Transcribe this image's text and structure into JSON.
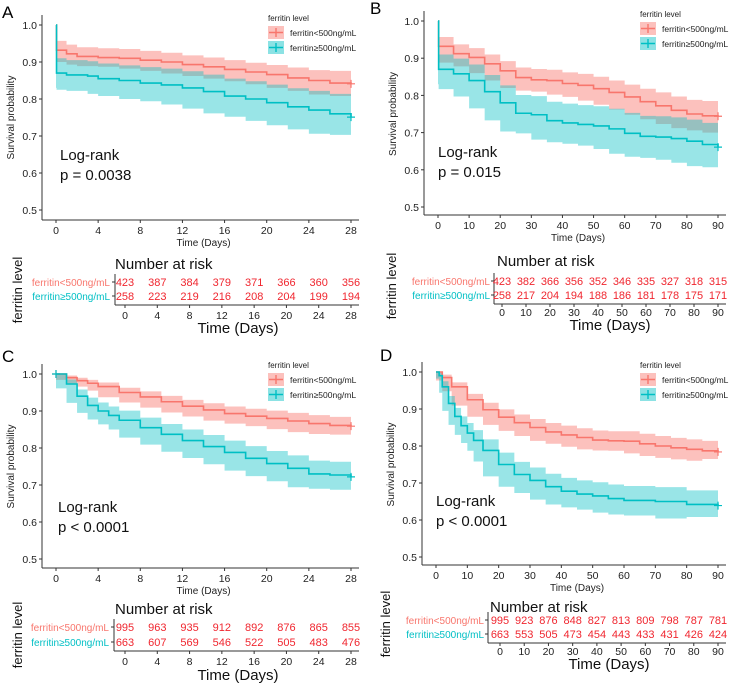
{
  "chart_data": [
    {
      "panel": "A",
      "type": "line",
      "subtype": "kaplan-meier",
      "xlabel": "Time (Days)",
      "ylabel": "Survival probability",
      "xlim": [
        0,
        28
      ],
      "ylim": [
        0.5,
        1.0
      ],
      "xticks": [
        0,
        4,
        8,
        12,
        16,
        20,
        24,
        28
      ],
      "yticks": [
        0.5,
        0.6,
        0.7,
        0.8,
        0.9,
        1.0
      ],
      "ytick_labels": [
        "0.5",
        "0.6",
        "0.7",
        "0.8",
        "0.9",
        "1.0"
      ],
      "legend_title": "ferritin level",
      "legend_position": "top-right",
      "annotation": [
        "Log-rank",
        "p = 0.0038"
      ],
      "series": [
        {
          "name": "ferritin<500ng/mL",
          "color": "#f8766d",
          "x": [
            0,
            0.05,
            1,
            2,
            4,
            6,
            8,
            10,
            12,
            14,
            16,
            18,
            20,
            22,
            24,
            26,
            28
          ],
          "y": [
            1.0,
            0.932,
            0.922,
            0.915,
            0.912,
            0.91,
            0.905,
            0.9,
            0.893,
            0.887,
            0.88,
            0.873,
            0.866,
            0.857,
            0.85,
            0.843,
            0.841
          ],
          "lower": [
            1.0,
            0.908,
            0.9,
            0.893,
            0.889,
            0.887,
            0.882,
            0.876,
            0.869,
            0.862,
            0.855,
            0.848,
            0.84,
            0.83,
            0.822,
            0.812,
            0.808
          ],
          "upper": [
            1.0,
            0.957,
            0.947,
            0.94,
            0.937,
            0.935,
            0.93,
            0.925,
            0.918,
            0.912,
            0.905,
            0.898,
            0.892,
            0.885,
            0.878,
            0.876,
            0.876
          ]
        },
        {
          "name": "ferritin≥500ng/mL",
          "color": "#00bfc4",
          "x": [
            0,
            0.05,
            1,
            3,
            4,
            6,
            8,
            10,
            12,
            14,
            16,
            18,
            20,
            22,
            24,
            26,
            28
          ],
          "y": [
            1.0,
            0.87,
            0.865,
            0.862,
            0.855,
            0.85,
            0.843,
            0.838,
            0.83,
            0.82,
            0.808,
            0.8,
            0.79,
            0.779,
            0.77,
            0.76,
            0.751
          ],
          "lower": [
            1.0,
            0.83,
            0.825,
            0.822,
            0.814,
            0.808,
            0.8,
            0.794,
            0.785,
            0.774,
            0.761,
            0.752,
            0.741,
            0.729,
            0.718,
            0.706,
            0.703
          ],
          "upper": [
            1.0,
            0.91,
            0.905,
            0.902,
            0.896,
            0.891,
            0.886,
            0.882,
            0.875,
            0.866,
            0.855,
            0.848,
            0.839,
            0.829,
            0.822,
            0.814,
            0.806
          ]
        }
      ],
      "risk_table": {
        "title": "Number at risk",
        "strata_title": "ferritin level",
        "xlabel": "Time (Days)",
        "times": [
          0,
          4,
          8,
          12,
          16,
          20,
          24,
          28
        ],
        "rows": [
          {
            "label": "ferritin<500ng/mL",
            "color": "#f8766d",
            "values": [
              423,
              387,
              384,
              379,
              371,
              366,
              360,
              356
            ]
          },
          {
            "label": "ferritin≥500ng/mL",
            "color": "#00bfc4",
            "values": [
              258,
              223,
              219,
              216,
              208,
              204,
              199,
              194
            ]
          }
        ]
      }
    },
    {
      "panel": "B",
      "type": "line",
      "subtype": "kaplan-meier",
      "xlabel": "Time (Days)",
      "ylabel": "Survival probability",
      "xlim": [
        0,
        90
      ],
      "ylim": [
        0.5,
        1.0
      ],
      "xticks": [
        0,
        10,
        20,
        30,
        40,
        50,
        60,
        70,
        80,
        90
      ],
      "yticks": [
        0.5,
        0.6,
        0.7,
        0.8,
        0.9,
        1.0
      ],
      "ytick_labels": [
        "0.5",
        "0.6",
        "0.7",
        "0.8",
        "0.9",
        "1.0"
      ],
      "legend_title": "ferritin level",
      "legend_position": "top-right",
      "annotation": [
        "Log-rank",
        "p = 0.015"
      ],
      "series": [
        {
          "name": "ferritin<500ng/mL",
          "color": "#f8766d",
          "x": [
            0,
            0.2,
            5,
            10,
            15,
            20,
            25,
            30,
            35,
            40,
            45,
            50,
            55,
            60,
            65,
            70,
            75,
            80,
            85,
            90
          ],
          "y": [
            1.0,
            0.932,
            0.912,
            0.902,
            0.885,
            0.866,
            0.848,
            0.842,
            0.84,
            0.832,
            0.827,
            0.818,
            0.808,
            0.796,
            0.783,
            0.772,
            0.76,
            0.75,
            0.745,
            0.744
          ],
          "lower": [
            1.0,
            0.908,
            0.888,
            0.878,
            0.86,
            0.84,
            0.82,
            0.813,
            0.81,
            0.802,
            0.796,
            0.786,
            0.775,
            0.762,
            0.748,
            0.736,
            0.723,
            0.712,
            0.706,
            0.7
          ],
          "upper": [
            1.0,
            0.957,
            0.937,
            0.927,
            0.91,
            0.892,
            0.875,
            0.871,
            0.869,
            0.862,
            0.858,
            0.85,
            0.84,
            0.829,
            0.818,
            0.808,
            0.797,
            0.788,
            0.785,
            0.786
          ]
        },
        {
          "name": "ferritin≥500ng/mL",
          "color": "#00bfc4",
          "x": [
            0,
            0.2,
            5,
            10,
            15,
            20,
            25,
            30,
            35,
            40,
            45,
            50,
            55,
            60,
            65,
            70,
            75,
            80,
            85,
            90
          ],
          "y": [
            1.0,
            0.87,
            0.858,
            0.84,
            0.81,
            0.78,
            0.752,
            0.748,
            0.732,
            0.726,
            0.722,
            0.718,
            0.71,
            0.698,
            0.69,
            0.688,
            0.684,
            0.677,
            0.668,
            0.661
          ],
          "lower": [
            1.0,
            0.83,
            0.817,
            0.797,
            0.765,
            0.733,
            0.703,
            0.698,
            0.681,
            0.674,
            0.67,
            0.665,
            0.656,
            0.643,
            0.635,
            0.632,
            0.627,
            0.619,
            0.61,
            0.607
          ],
          "upper": [
            1.0,
            0.91,
            0.899,
            0.883,
            0.855,
            0.827,
            0.801,
            0.798,
            0.783,
            0.778,
            0.774,
            0.771,
            0.764,
            0.753,
            0.745,
            0.744,
            0.741,
            0.735,
            0.726,
            0.707
          ]
        }
      ],
      "risk_table": {
        "title": "Number at risk",
        "strata_title": "ferritin level",
        "xlabel": "Time (Days)",
        "times": [
          0,
          10,
          20,
          30,
          40,
          50,
          60,
          70,
          80,
          90
        ],
        "rows": [
          {
            "label": "ferritin<500ng/mL",
            "color": "#f8766d",
            "values": [
              423,
              382,
              366,
              356,
              352,
              346,
              335,
              327,
              318,
              315
            ]
          },
          {
            "label": "ferritin≥500ng/mL",
            "color": "#00bfc4",
            "values": [
              258,
              217,
              204,
              194,
              188,
              186,
              181,
              178,
              175,
              171
            ]
          }
        ]
      }
    },
    {
      "panel": "C",
      "type": "line",
      "subtype": "kaplan-meier",
      "xlabel": "Time (Days)",
      "ylabel": "Survival probability",
      "xlim": [
        0,
        28
      ],
      "ylim": [
        0.5,
        1.0
      ],
      "xticks": [
        0,
        4,
        8,
        12,
        16,
        20,
        24,
        28
      ],
      "yticks": [
        0.5,
        0.6,
        0.7,
        0.8,
        0.9,
        1.0
      ],
      "ytick_labels": [
        "0.5",
        "0.6",
        "0.7",
        "0.8",
        "0.9",
        "1.0"
      ],
      "legend_title": "ferritin level",
      "legend_position": "top-right",
      "annotation": [
        "Log-rank",
        "p < 0.0001"
      ],
      "series": [
        {
          "name": "ferritin<500ng/mL",
          "color": "#f8766d",
          "x": [
            0,
            1,
            2,
            3,
            4,
            6,
            8,
            10,
            12,
            14,
            16,
            18,
            20,
            22,
            24,
            26,
            28
          ],
          "y": [
            1.0,
            0.99,
            0.982,
            0.975,
            0.966,
            0.95,
            0.938,
            0.925,
            0.913,
            0.903,
            0.893,
            0.886,
            0.88,
            0.873,
            0.866,
            0.861,
            0.859
          ],
          "lower": [
            1.0,
            0.984,
            0.974,
            0.966,
            0.955,
            0.937,
            0.923,
            0.909,
            0.896,
            0.885,
            0.874,
            0.866,
            0.859,
            0.851,
            0.843,
            0.838,
            0.836
          ],
          "upper": [
            1.0,
            0.996,
            0.99,
            0.984,
            0.977,
            0.963,
            0.953,
            0.941,
            0.93,
            0.921,
            0.912,
            0.906,
            0.901,
            0.895,
            0.889,
            0.884,
            0.882
          ]
        },
        {
          "name": "ferritin≥500ng/mL",
          "color": "#00bfc4",
          "x": [
            0,
            1,
            2,
            3,
            4,
            5,
            6,
            8,
            10,
            12,
            14,
            16,
            18,
            20,
            22,
            24,
            26,
            28
          ],
          "y": [
            1.0,
            0.973,
            0.94,
            0.915,
            0.9,
            0.888,
            0.875,
            0.855,
            0.837,
            0.82,
            0.804,
            0.788,
            0.772,
            0.758,
            0.745,
            0.73,
            0.727,
            0.722
          ],
          "lower": [
            1.0,
            0.961,
            0.922,
            0.895,
            0.877,
            0.864,
            0.85,
            0.828,
            0.809,
            0.79,
            0.773,
            0.756,
            0.739,
            0.724,
            0.71,
            0.694,
            0.69,
            0.687
          ],
          "upper": [
            1.0,
            0.985,
            0.958,
            0.936,
            0.923,
            0.912,
            0.901,
            0.882,
            0.865,
            0.85,
            0.835,
            0.82,
            0.805,
            0.792,
            0.78,
            0.766,
            0.763,
            0.758
          ]
        }
      ],
      "risk_table": {
        "title": "Number at risk",
        "strata_title": "ferritin level",
        "xlabel": "Time (Days)",
        "times": [
          0,
          4,
          8,
          12,
          16,
          20,
          24,
          28
        ],
        "rows": [
          {
            "label": "ferritin<500ng/mL",
            "color": "#f8766d",
            "values": [
              995,
              963,
              935,
              912,
              892,
              876,
              865,
              855
            ]
          },
          {
            "label": "ferritin≥500ng/mL",
            "color": "#00bfc4",
            "values": [
              663,
              607,
              569,
              546,
              522,
              505,
              483,
              476
            ]
          }
        ]
      }
    },
    {
      "panel": "D",
      "type": "line",
      "subtype": "kaplan-meier",
      "xlabel": "Time (Days)",
      "ylabel": "Survival probability",
      "xlim": [
        0,
        90
      ],
      "ylim": [
        0.5,
        1.0
      ],
      "xticks": [
        0,
        10,
        20,
        30,
        40,
        50,
        60,
        70,
        80,
        90
      ],
      "yticks": [
        0.5,
        0.6,
        0.7,
        0.8,
        0.9,
        1.0
      ],
      "ytick_labels": [
        "0.5",
        "0.6",
        "0.7",
        "0.8",
        "0.9",
        "1.0"
      ],
      "legend_title": "ferritin level",
      "legend_position": "top-right",
      "annotation": [
        "Log-rank",
        "p < 0.0001"
      ],
      "series": [
        {
          "name": "ferritin<500ng/mL",
          "color": "#f8766d",
          "x": [
            0,
            2,
            5,
            10,
            15,
            20,
            25,
            30,
            35,
            40,
            45,
            50,
            55,
            60,
            65,
            70,
            75,
            80,
            85,
            90
          ],
          "y": [
            1.0,
            0.985,
            0.96,
            0.925,
            0.898,
            0.878,
            0.863,
            0.85,
            0.838,
            0.83,
            0.823,
            0.816,
            0.814,
            0.813,
            0.806,
            0.8,
            0.795,
            0.791,
            0.787,
            0.784
          ],
          "lower": [
            1.0,
            0.977,
            0.948,
            0.909,
            0.879,
            0.857,
            0.841,
            0.827,
            0.814,
            0.806,
            0.798,
            0.791,
            0.788,
            0.787,
            0.78,
            0.773,
            0.768,
            0.764,
            0.76,
            0.765
          ],
          "upper": [
            1.0,
            0.993,
            0.972,
            0.941,
            0.917,
            0.899,
            0.885,
            0.873,
            0.862,
            0.855,
            0.848,
            0.842,
            0.84,
            0.84,
            0.833,
            0.827,
            0.822,
            0.818,
            0.814,
            0.808
          ]
        },
        {
          "name": "ferritin≥500ng/mL",
          "color": "#00bfc4",
          "x": [
            0,
            1,
            2,
            4,
            6,
            8,
            10,
            12,
            15,
            20,
            25,
            30,
            35,
            40,
            45,
            50,
            55,
            60,
            70,
            80,
            90
          ],
          "y": [
            1.0,
            0.99,
            0.96,
            0.915,
            0.88,
            0.855,
            0.835,
            0.815,
            0.788,
            0.75,
            0.723,
            0.707,
            0.69,
            0.678,
            0.67,
            0.665,
            0.658,
            0.653,
            0.65,
            0.642,
            0.639
          ],
          "lower": [
            1.0,
            0.982,
            0.944,
            0.895,
            0.857,
            0.83,
            0.808,
            0.787,
            0.758,
            0.718,
            0.69,
            0.673,
            0.655,
            0.642,
            0.634,
            0.628,
            0.62,
            0.615,
            0.612,
            0.604,
            0.608
          ],
          "upper": [
            1.0,
            0.998,
            0.975,
            0.935,
            0.903,
            0.88,
            0.862,
            0.843,
            0.818,
            0.782,
            0.757,
            0.742,
            0.725,
            0.714,
            0.707,
            0.702,
            0.696,
            0.692,
            0.689,
            0.68,
            0.676
          ]
        }
      ],
      "risk_table": {
        "title": "Number at risk",
        "strata_title": "ferritin level",
        "xlabel": "Time (Days)",
        "times": [
          0,
          10,
          20,
          30,
          40,
          50,
          60,
          70,
          80,
          90
        ],
        "rows": [
          {
            "label": "ferritin<500ng/mL",
            "color": "#f8766d",
            "values": [
              995,
              923,
              876,
              848,
              827,
              813,
              809,
              798,
              787,
              781
            ]
          },
          {
            "label": "ferritin≥500ng/mL",
            "color": "#00bfc4",
            "values": [
              663,
              553,
              505,
              473,
              454,
              443,
              433,
              431,
              426,
              424
            ]
          }
        ]
      }
    }
  ],
  "styles": {
    "band_red": "#f8766d",
    "band_teal": "#00bfc4",
    "risk_value_color": "#f0262f",
    "axis_color": "#333333"
  }
}
